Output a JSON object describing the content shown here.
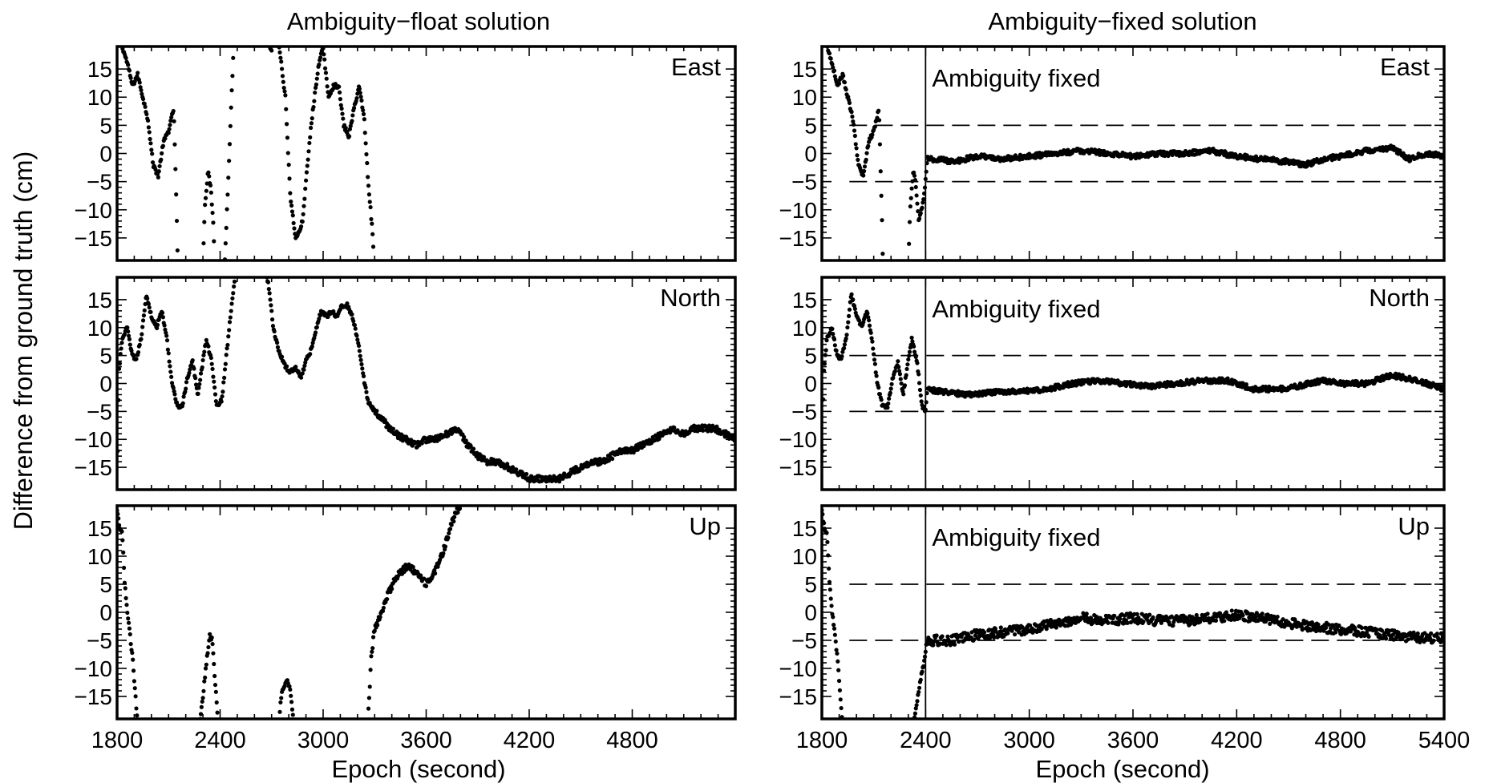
{
  "figure": {
    "ylabel": "Difference from ground truth (cm)",
    "colors": {
      "points": "#000000",
      "axes": "#000000",
      "background": "#ffffff"
    }
  },
  "columns": [
    {
      "title": "Ambiguity−float solution",
      "xlabel": "Epoch (second)",
      "xticks": [
        "1800",
        "2400",
        "3000",
        "3600",
        "4200",
        "4800"
      ]
    },
    {
      "title": "Ambiguity−fixed solution",
      "xlabel": "Epoch (second)",
      "xticks": [
        "1800",
        "2400",
        "3000",
        "3600",
        "4200",
        "4800",
        "5400"
      ]
    }
  ],
  "yticks": [
    "15",
    "10",
    "5",
    "0",
    "−5",
    "−10",
    "−15"
  ],
  "annotation_text": "Ambiguity fixed",
  "chart_data": [
    {
      "type": "scatter",
      "panel": "float-east",
      "label": "East",
      "xlim": [
        1800,
        5400
      ],
      "ylim": [
        -19,
        19
      ],
      "keypoints": [
        [
          1800,
          24
        ],
        [
          1830,
          19
        ],
        [
          1860,
          16
        ],
        [
          1890,
          12
        ],
        [
          1920,
          14
        ],
        [
          1950,
          10
        ],
        [
          1980,
          6
        ],
        [
          2010,
          -2
        ],
        [
          2040,
          -4
        ],
        [
          2070,
          2
        ],
        [
          2100,
          4
        ],
        [
          2130,
          8
        ],
        [
          2150,
          -14
        ],
        [
          2165,
          -40
        ],
        [
          2300,
          -20
        ],
        [
          2310,
          -10
        ],
        [
          2330,
          -3
        ],
        [
          2345,
          -6
        ],
        [
          2360,
          -12
        ],
        [
          2390,
          -40
        ],
        [
          2420,
          -25
        ],
        [
          2440,
          -10
        ],
        [
          2460,
          5
        ],
        [
          2480,
          20
        ],
        [
          2500,
          40
        ],
        [
          2660,
          40
        ],
        [
          2680,
          20
        ],
        [
          2700,
          18
        ],
        [
          2720,
          25
        ],
        [
          2780,
          10
        ],
        [
          2810,
          -8
        ],
        [
          2840,
          -15
        ],
        [
          2860,
          -14
        ],
        [
          2880,
          -12
        ],
        [
          2900,
          -5
        ],
        [
          2930,
          5
        ],
        [
          2970,
          15
        ],
        [
          3000,
          19
        ],
        [
          3030,
          10
        ],
        [
          3060,
          12
        ],
        [
          3090,
          12
        ],
        [
          3120,
          5
        ],
        [
          3150,
          3
        ],
        [
          3180,
          8
        ],
        [
          3210,
          12
        ],
        [
          3240,
          6
        ],
        [
          3260,
          -4
        ],
        [
          3290,
          -15
        ],
        [
          3310,
          -30
        ]
      ]
    },
    {
      "type": "scatter",
      "panel": "float-north",
      "label": "North",
      "xlim": [
        1800,
        5400
      ],
      "ylim": [
        -19,
        19
      ],
      "keypoints": [
        [
          1800,
          -22
        ],
        [
          1810,
          2
        ],
        [
          1830,
          8
        ],
        [
          1860,
          10
        ],
        [
          1880,
          6
        ],
        [
          1910,
          4
        ],
        [
          1940,
          8
        ],
        [
          1970,
          16
        ],
        [
          2000,
          12
        ],
        [
          2030,
          10
        ],
        [
          2060,
          13
        ],
        [
          2090,
          8
        ],
        [
          2120,
          0
        ],
        [
          2150,
          -4
        ],
        [
          2180,
          -4
        ],
        [
          2210,
          1
        ],
        [
          2240,
          4
        ],
        [
          2270,
          -2
        ],
        [
          2300,
          4
        ],
        [
          2320,
          8
        ],
        [
          2350,
          4
        ],
        [
          2380,
          -4
        ],
        [
          2410,
          -3
        ],
        [
          2440,
          6
        ],
        [
          2470,
          15
        ],
        [
          2500,
          22
        ],
        [
          2650,
          22
        ],
        [
          2680,
          18
        ],
        [
          2710,
          10
        ],
        [
          2740,
          6
        ],
        [
          2780,
          3
        ],
        [
          2810,
          2
        ],
        [
          2840,
          3
        ],
        [
          2870,
          1
        ],
        [
          2900,
          4
        ],
        [
          2930,
          6
        ],
        [
          2960,
          10
        ],
        [
          2990,
          13
        ],
        [
          3020,
          12
        ],
        [
          3050,
          13
        ],
        [
          3080,
          12
        ],
        [
          3110,
          14
        ],
        [
          3140,
          14
        ],
        [
          3170,
          12
        ],
        [
          3200,
          8
        ],
        [
          3230,
          2
        ],
        [
          3260,
          -3
        ],
        [
          3300,
          -5
        ],
        [
          3360,
          -7
        ],
        [
          3420,
          -9
        ],
        [
          3480,
          -10
        ],
        [
          3540,
          -11
        ],
        [
          3600,
          -10
        ],
        [
          3660,
          -10
        ],
        [
          3720,
          -9
        ],
        [
          3780,
          -8
        ],
        [
          3840,
          -11
        ],
        [
          3900,
          -13
        ],
        [
          3960,
          -14
        ],
        [
          4020,
          -14
        ],
        [
          4080,
          -15
        ],
        [
          4140,
          -16
        ],
        [
          4200,
          -17
        ],
        [
          4260,
          -17
        ],
        [
          4320,
          -17
        ],
        [
          4380,
          -17
        ],
        [
          4440,
          -16
        ],
        [
          4500,
          -15
        ],
        [
          4560,
          -14
        ],
        [
          4620,
          -14
        ],
        [
          4680,
          -13
        ],
        [
          4740,
          -12
        ],
        [
          4800,
          -12
        ],
        [
          4860,
          -11
        ],
        [
          4920,
          -10
        ],
        [
          4980,
          -9
        ],
        [
          5040,
          -8
        ],
        [
          5100,
          -9
        ],
        [
          5160,
          -8
        ],
        [
          5220,
          -8
        ],
        [
          5280,
          -8
        ],
        [
          5340,
          -9
        ],
        [
          5400,
          -10
        ]
      ]
    },
    {
      "type": "scatter",
      "panel": "float-up",
      "label": "Up",
      "xlim": [
        1800,
        5400
      ],
      "ylim": [
        -19,
        19
      ],
      "keypoints": [
        [
          1800,
          18
        ],
        [
          1815,
          15
        ],
        [
          1830,
          14
        ],
        [
          1845,
          5
        ],
        [
          1860,
          0
        ],
        [
          1875,
          -4
        ],
        [
          1890,
          -8
        ],
        [
          1905,
          -14
        ],
        [
          1920,
          -20
        ],
        [
          2280,
          -20
        ],
        [
          2300,
          -15
        ],
        [
          2320,
          -9
        ],
        [
          2340,
          -4
        ],
        [
          2355,
          -5
        ],
        [
          2370,
          -12
        ],
        [
          2390,
          -20
        ],
        [
          2740,
          -20
        ],
        [
          2760,
          -14
        ],
        [
          2790,
          -12
        ],
        [
          2810,
          -14
        ],
        [
          2830,
          -20
        ],
        [
          3260,
          -20
        ],
        [
          3280,
          -8
        ],
        [
          3300,
          -3
        ],
        [
          3330,
          -1
        ],
        [
          3360,
          2
        ],
        [
          3390,
          4
        ],
        [
          3420,
          6
        ],
        [
          3450,
          7
        ],
        [
          3480,
          8
        ],
        [
          3510,
          8
        ],
        [
          3540,
          7
        ],
        [
          3570,
          6
        ],
        [
          3600,
          5
        ],
        [
          3630,
          6
        ],
        [
          3660,
          8
        ],
        [
          3690,
          10
        ],
        [
          3720,
          13
        ],
        [
          3750,
          16
        ],
        [
          3780,
          18
        ],
        [
          3800,
          19
        ]
      ]
    },
    {
      "type": "scatter",
      "panel": "fixed-east",
      "label": "East",
      "xlim": [
        1800,
        5400
      ],
      "ylim": [
        -19,
        19
      ],
      "fix_epoch": 2400,
      "bounds": [
        -5,
        5
      ],
      "keypoints": [
        [
          1800,
          24
        ],
        [
          1830,
          19
        ],
        [
          1860,
          16
        ],
        [
          1890,
          12
        ],
        [
          1920,
          14
        ],
        [
          1950,
          10
        ],
        [
          1980,
          6
        ],
        [
          2010,
          -2
        ],
        [
          2040,
          -4
        ],
        [
          2070,
          2
        ],
        [
          2100,
          4
        ],
        [
          2130,
          8
        ],
        [
          2150,
          -14
        ],
        [
          2165,
          -40
        ],
        [
          2300,
          -20
        ],
        [
          2310,
          -10
        ],
        [
          2330,
          -3
        ],
        [
          2345,
          -6
        ],
        [
          2360,
          -12
        ],
        [
          2390,
          -8
        ],
        [
          2410,
          -1
        ],
        [
          2470,
          -1
        ],
        [
          2560,
          -1.5
        ],
        [
          2700,
          -0.5
        ],
        [
          2850,
          -1
        ],
        [
          3000,
          -0.5
        ],
        [
          3150,
          0
        ],
        [
          3300,
          0.5
        ],
        [
          3450,
          0
        ],
        [
          3600,
          -0.5
        ],
        [
          3750,
          0
        ],
        [
          3900,
          0
        ],
        [
          4050,
          0.5
        ],
        [
          4200,
          -0.5
        ],
        [
          4350,
          -1
        ],
        [
          4500,
          -1.5
        ],
        [
          4600,
          -2
        ],
        [
          4700,
          -1
        ],
        [
          4800,
          -0.5
        ],
        [
          4950,
          0.5
        ],
        [
          5100,
          1
        ],
        [
          5200,
          -1
        ],
        [
          5300,
          0
        ],
        [
          5400,
          -0.5
        ]
      ]
    },
    {
      "type": "scatter",
      "panel": "fixed-north",
      "label": "North",
      "xlim": [
        1800,
        5400
      ],
      "ylim": [
        -19,
        19
      ],
      "fix_epoch": 2400,
      "bounds": [
        -5,
        5
      ],
      "keypoints": [
        [
          1800,
          -22
        ],
        [
          1810,
          2
        ],
        [
          1830,
          8
        ],
        [
          1860,
          10
        ],
        [
          1880,
          6
        ],
        [
          1910,
          4
        ],
        [
          1940,
          8
        ],
        [
          1970,
          16
        ],
        [
          2000,
          12
        ],
        [
          2030,
          10
        ],
        [
          2060,
          13
        ],
        [
          2090,
          8
        ],
        [
          2120,
          0
        ],
        [
          2150,
          -4
        ],
        [
          2180,
          -4
        ],
        [
          2210,
          1
        ],
        [
          2240,
          4
        ],
        [
          2270,
          -2
        ],
        [
          2300,
          4
        ],
        [
          2320,
          8
        ],
        [
          2350,
          4
        ],
        [
          2380,
          -4
        ],
        [
          2400,
          -5
        ],
        [
          2410,
          -1
        ],
        [
          2500,
          -1.5
        ],
        [
          2650,
          -2
        ],
        [
          2800,
          -1.5
        ],
        [
          2950,
          -1.5
        ],
        [
          3100,
          -1
        ],
        [
          3250,
          0
        ],
        [
          3400,
          0.5
        ],
        [
          3550,
          0
        ],
        [
          3700,
          -0.5
        ],
        [
          3850,
          0
        ],
        [
          4000,
          0.5
        ],
        [
          4150,
          0.5
        ],
        [
          4300,
          -1
        ],
        [
          4450,
          -1
        ],
        [
          4550,
          -0.5
        ],
        [
          4700,
          0.5
        ],
        [
          4800,
          0
        ],
        [
          4950,
          0
        ],
        [
          5100,
          1.5
        ],
        [
          5250,
          0.5
        ],
        [
          5400,
          -1
        ]
      ]
    },
    {
      "type": "scatter",
      "panel": "fixed-up",
      "label": "Up",
      "xlim": [
        1800,
        5400
      ],
      "ylim": [
        -19,
        19
      ],
      "fix_epoch": 2400,
      "bounds": [
        -5,
        5
      ],
      "keypoints": [
        [
          1800,
          18
        ],
        [
          1815,
          15
        ],
        [
          1830,
          14
        ],
        [
          1845,
          5
        ],
        [
          1860,
          0
        ],
        [
          1875,
          -4
        ],
        [
          1890,
          -8
        ],
        [
          1905,
          -14
        ],
        [
          1920,
          -20
        ],
        [
          2330,
          -20
        ],
        [
          2350,
          -16
        ],
        [
          2370,
          -12
        ],
        [
          2390,
          -9
        ],
        [
          2400,
          -7
        ],
        [
          2410,
          -5
        ],
        [
          2550,
          -5
        ],
        [
          2700,
          -4
        ],
        [
          2850,
          -3.5
        ],
        [
          3000,
          -3
        ],
        [
          3150,
          -2
        ],
        [
          3300,
          -1
        ],
        [
          3450,
          -1.5
        ],
        [
          3600,
          -1
        ],
        [
          3750,
          -1.5
        ],
        [
          3900,
          -1.5
        ],
        [
          4050,
          -1
        ],
        [
          4200,
          -0.5
        ],
        [
          4350,
          -1
        ],
        [
          4500,
          -2
        ],
        [
          4650,
          -2.5
        ],
        [
          4800,
          -3
        ],
        [
          4950,
          -3.5
        ],
        [
          5100,
          -4
        ],
        [
          5250,
          -4.5
        ],
        [
          5400,
          -4.5
        ]
      ]
    }
  ]
}
